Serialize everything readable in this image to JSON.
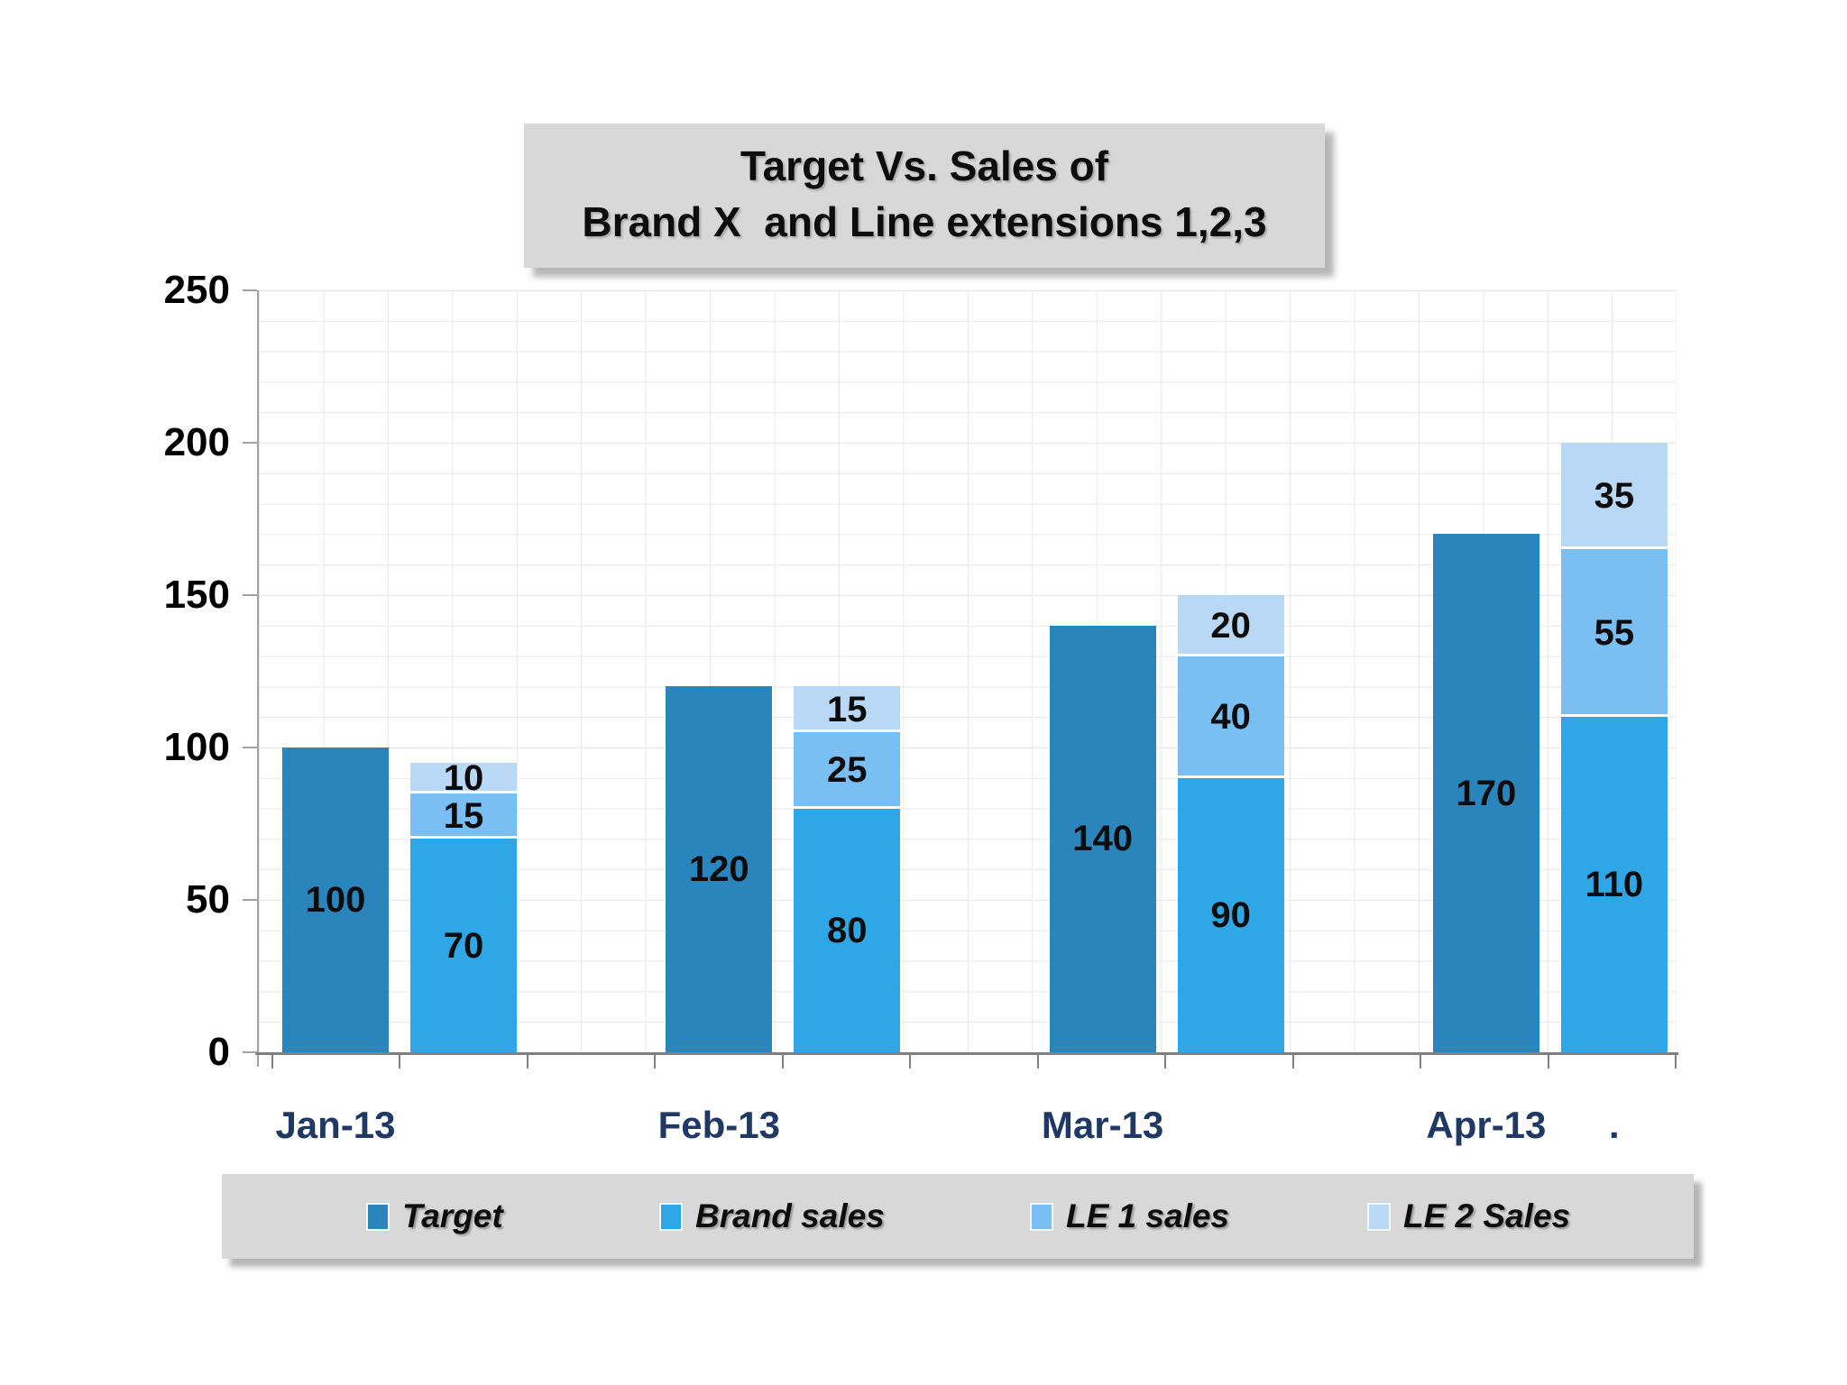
{
  "title": {
    "line1": "Target Vs. Sales of",
    "line2": "Brand X  and Line extensions 1,2,3"
  },
  "legend": {
    "items": [
      {
        "label": "Target",
        "color": "#2a85bd"
      },
      {
        "label": "Brand sales",
        "color": "#2fa7e6"
      },
      {
        "label": "LE 1 sales",
        "color": "#79bff4"
      },
      {
        "label": "LE 2 Sales",
        "color": "#b9d8f6"
      }
    ]
  },
  "axes": {
    "y_ticks": [
      0,
      50,
      100,
      150,
      200,
      250
    ],
    "x_labels": [
      "Jan-13",
      "Feb-13",
      "Mar-13",
      "Apr-13"
    ],
    "x_extra_label": "."
  },
  "colors": {
    "grid": "#e9e9e9",
    "axis": "#a3a3a3",
    "x_axis_label": "#1f3864",
    "panel_background": "#d8d8d8"
  },
  "chart_data": {
    "type": "bar",
    "title": "Target Vs. Sales of Brand X  and Line extensions 1,2,3",
    "categories": [
      "Jan-13",
      "Feb-13",
      "Mar-13",
      "Apr-13"
    ],
    "series": [
      {
        "name": "Target",
        "role": "standalone",
        "color": "#2a85bd",
        "values": [
          100,
          120,
          140,
          170
        ]
      },
      {
        "name": "Brand sales",
        "role": "stack",
        "color": "#2fa7e6",
        "values": [
          70,
          80,
          90,
          110
        ]
      },
      {
        "name": "LE 1 sales",
        "role": "stack",
        "color": "#79bff4",
        "values": [
          15,
          25,
          40,
          55
        ]
      },
      {
        "name": "LE 2 Sales",
        "role": "stack",
        "color": "#b9d8f6",
        "values": [
          10,
          15,
          20,
          35
        ]
      }
    ],
    "data_labels_shown": true,
    "xlabel": "",
    "ylabel": "",
    "ylim": [
      0,
      250
    ],
    "grid": true,
    "legend_position": "bottom"
  }
}
